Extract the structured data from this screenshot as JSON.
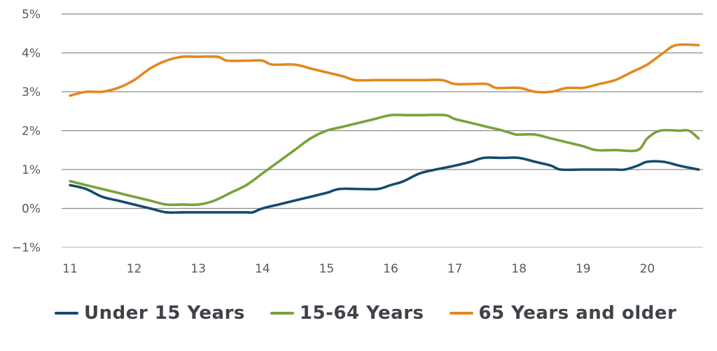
{
  "chart_data": {
    "type": "line",
    "title": "",
    "xlabel": "",
    "ylabel": "",
    "xlim": [
      11,
      20.8
    ],
    "ylim": [
      -1,
      5
    ],
    "grid": true,
    "legend_position": "bottom",
    "x_ticks": [
      {
        "value": 11,
        "label": "11"
      },
      {
        "value": 12,
        "label": "12"
      },
      {
        "value": 13,
        "label": "13"
      },
      {
        "value": 14,
        "label": "14"
      },
      {
        "value": 15,
        "label": "15"
      },
      {
        "value": 16,
        "label": "16"
      },
      {
        "value": 17,
        "label": "17"
      },
      {
        "value": 18,
        "label": "18"
      },
      {
        "value": 19,
        "label": "19"
      },
      {
        "value": 20,
        "label": "20"
      }
    ],
    "y_ticks": [
      {
        "value": 5,
        "label": "5%"
      },
      {
        "value": 4,
        "label": "4%"
      },
      {
        "value": 3,
        "label": "3%"
      },
      {
        "value": 2,
        "label": "2%"
      },
      {
        "value": 1,
        "label": "1%"
      },
      {
        "value": 0,
        "label": "0%"
      },
      {
        "value": -1,
        "label": "−1%"
      }
    ],
    "series": [
      {
        "name": "Under 15 Years",
        "color": "#144b6b",
        "x": [
          11,
          11.25,
          11.5,
          11.75,
          12,
          12.25,
          12.5,
          12.75,
          13,
          13.25,
          13.5,
          13.75,
          13.85,
          14,
          14.25,
          14.5,
          14.75,
          15,
          15.2,
          15.5,
          15.8,
          16,
          16.2,
          16.45,
          16.7,
          17,
          17.25,
          17.45,
          17.75,
          18,
          18.25,
          18.5,
          18.65,
          19,
          19.25,
          19.5,
          19.65,
          19.85,
          20,
          20.25,
          20.5,
          20.8
        ],
        "y": [
          0.6,
          0.5,
          0.3,
          0.2,
          0.1,
          0,
          -0.1,
          -0.1,
          -0.1,
          -0.1,
          -0.1,
          -0.1,
          -0.1,
          0,
          0.1,
          0.2,
          0.3,
          0.4,
          0.5,
          0.5,
          0.5,
          0.6,
          0.7,
          0.9,
          1.0,
          1.1,
          1.2,
          1.3,
          1.3,
          1.3,
          1.2,
          1.1,
          1.0,
          1.0,
          1.0,
          1.0,
          1.0,
          1.1,
          1.2,
          1.2,
          1.1,
          1.0
        ]
      },
      {
        "name": "15-64 Years",
        "color": "#76a33a",
        "x": [
          11,
          11.25,
          11.5,
          11.75,
          12,
          12.25,
          12.5,
          12.75,
          13,
          13.25,
          13.5,
          13.75,
          14,
          14.25,
          14.5,
          14.75,
          15,
          15.25,
          15.5,
          15.75,
          16,
          16.25,
          16.5,
          16.85,
          17,
          17.25,
          17.5,
          17.75,
          17.95,
          18,
          18.25,
          18.5,
          18.75,
          19,
          19.2,
          19.5,
          19.85,
          20,
          20.2,
          20.5,
          20.65,
          20.8
        ],
        "y": [
          0.7,
          0.6,
          0.5,
          0.4,
          0.3,
          0.2,
          0.1,
          0.1,
          0.1,
          0.2,
          0.4,
          0.6,
          0.9,
          1.2,
          1.5,
          1.8,
          2.0,
          2.1,
          2.2,
          2.3,
          2.4,
          2.4,
          2.4,
          2.4,
          2.3,
          2.2,
          2.1,
          2.0,
          1.9,
          1.9,
          1.9,
          1.8,
          1.7,
          1.6,
          1.5,
          1.5,
          1.5,
          1.8,
          2.0,
          2.0,
          2.0,
          1.8
        ]
      },
      {
        "name": "65 Years and older",
        "color": "#e3871e",
        "x": [
          11,
          11.25,
          11.5,
          11.75,
          12,
          12.25,
          12.5,
          12.75,
          13,
          13.3,
          13.45,
          13.75,
          14,
          14.15,
          14.5,
          14.75,
          15,
          15.25,
          15.45,
          15.75,
          16,
          16.25,
          16.5,
          16.8,
          17,
          17.25,
          17.5,
          17.65,
          18,
          18.25,
          18.5,
          18.75,
          19,
          19.25,
          19.5,
          19.75,
          20,
          20.25,
          20.45,
          20.8
        ],
        "y": [
          2.9,
          3.0,
          3.0,
          3.1,
          3.3,
          3.6,
          3.8,
          3.9,
          3.9,
          3.9,
          3.8,
          3.8,
          3.8,
          3.7,
          3.7,
          3.6,
          3.5,
          3.4,
          3.3,
          3.3,
          3.3,
          3.3,
          3.3,
          3.3,
          3.2,
          3.2,
          3.2,
          3.1,
          3.1,
          3.0,
          3.0,
          3.1,
          3.1,
          3.2,
          3.3,
          3.5,
          3.7,
          4.0,
          4.2,
          4.2
        ]
      }
    ]
  }
}
